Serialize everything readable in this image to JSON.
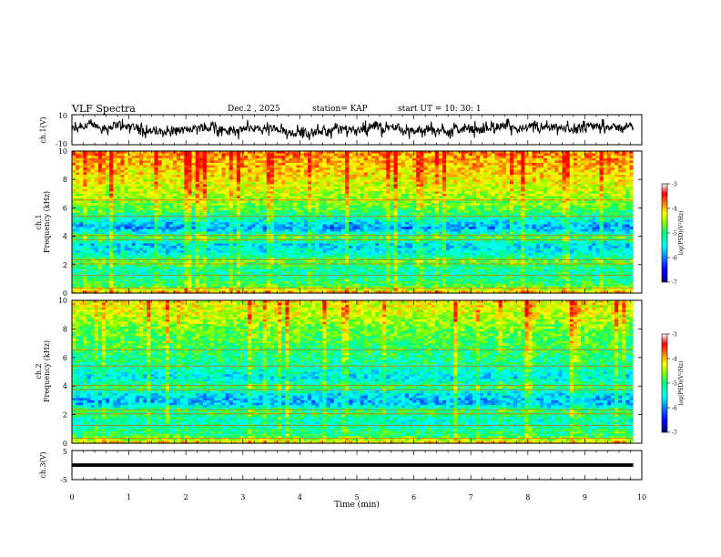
{
  "header": {
    "title": "VLF Spectra",
    "date": "Dec.2 , 2025",
    "station": "station= KAP",
    "start": "start  UT  =   10: 30: 1"
  },
  "colors": {
    "axis": "#000000",
    "trace": "#000000",
    "colormap": [
      "#000080",
      "#0000ff",
      "#0080ff",
      "#00ffff",
      "#00ff80",
      "#80ff00",
      "#ffff00",
      "#ff8000",
      "#ff0000",
      "#ffffff"
    ]
  },
  "chart_data": [
    {
      "type": "line",
      "panel": "ch1-waveform",
      "ylabel": "ch.1(V)",
      "ylim": [
        -10,
        10
      ],
      "yticks": [
        "10",
        "-10"
      ],
      "xlim": [
        0,
        10
      ],
      "description_values": {
        "mean": 0,
        "amplitude_range": [
          -7,
          7
        ]
      }
    },
    {
      "type": "heatmap",
      "panel": "ch1-spectrogram",
      "ylabel": "ch.1\nFrequency (kHz)",
      "ylabel_lines": [
        "ch.1",
        "Frequency  (kHz)"
      ],
      "ylim": [
        0,
        10
      ],
      "yticks": [
        "0",
        "2",
        "4",
        "6",
        "8",
        "10"
      ],
      "xlim": [
        0,
        10
      ],
      "log_psd_range": [
        -7,
        -3
      ],
      "band_profile_khz": [
        {
          "f": 0.0,
          "v": -3.6
        },
        {
          "f": 0.5,
          "v": -4.8
        },
        {
          "f": 1.0,
          "v": -5.0
        },
        {
          "f": 1.6,
          "v": -5.2
        },
        {
          "f": 2.2,
          "v": -4.6
        },
        {
          "f": 2.8,
          "v": -5.4
        },
        {
          "f": 3.4,
          "v": -5.6
        },
        {
          "f": 3.9,
          "v": -4.7
        },
        {
          "f": 4.6,
          "v": -5.9
        },
        {
          "f": 5.2,
          "v": -5.3
        },
        {
          "f": 6.0,
          "v": -4.6
        },
        {
          "f": 7.0,
          "v": -4.3
        },
        {
          "f": 8.0,
          "v": -4.0
        },
        {
          "f": 9.0,
          "v": -3.7
        },
        {
          "f": 10.0,
          "v": -3.5
        }
      ]
    },
    {
      "type": "heatmap",
      "panel": "ch2-spectrogram",
      "ylabel": "ch.2\nFrequency (kHz)",
      "ylabel_lines": [
        "ch.2",
        "Frequency  (kHz)"
      ],
      "ylim": [
        0,
        10
      ],
      "yticks": [
        "0",
        "2",
        "4",
        "6",
        "8",
        "10"
      ],
      "xlim": [
        0,
        10
      ],
      "log_psd_range": [
        -7,
        -3
      ],
      "band_profile_khz": [
        {
          "f": 0.0,
          "v": -3.8
        },
        {
          "f": 0.5,
          "v": -4.9
        },
        {
          "f": 1.0,
          "v": -5.1
        },
        {
          "f": 1.6,
          "v": -5.3
        },
        {
          "f": 2.2,
          "v": -4.8
        },
        {
          "f": 2.8,
          "v": -5.8
        },
        {
          "f": 3.4,
          "v": -5.6
        },
        {
          "f": 3.9,
          "v": -4.9
        },
        {
          "f": 4.6,
          "v": -5.5
        },
        {
          "f": 5.2,
          "v": -5.2
        },
        {
          "f": 6.0,
          "v": -5.0
        },
        {
          "f": 7.0,
          "v": -4.8
        },
        {
          "f": 8.0,
          "v": -4.6
        },
        {
          "f": 9.0,
          "v": -4.2
        },
        {
          "f": 10.0,
          "v": -4.0
        }
      ]
    },
    {
      "type": "line",
      "panel": "ch3-waveform",
      "ylabel": "ch.3(V)",
      "ylim": [
        -5,
        5
      ],
      "yticks": [
        "5",
        "-5"
      ],
      "xlim": [
        0,
        10
      ],
      "xlabel": "Time  (min)",
      "xticks": [
        "0",
        "1",
        "2",
        "3",
        "4",
        "5",
        "6",
        "7",
        "8",
        "9",
        "10"
      ],
      "description_values": {
        "level": 0,
        "band_halfwidth": 0.6
      }
    }
  ],
  "colorbars": [
    {
      "label": "log(PSD)(V²/Hz)",
      "ticks": [
        "-3",
        "-4",
        "-5",
        "-6",
        "-7"
      ]
    },
    {
      "label": "log(PSD)(V²/Hz)",
      "ticks": [
        "-3",
        "-4",
        "-5",
        "-6",
        "-7"
      ]
    }
  ]
}
